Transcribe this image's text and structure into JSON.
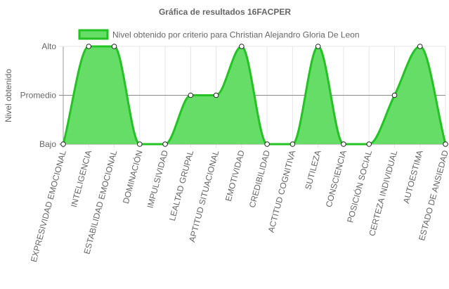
{
  "chart_data": {
    "type": "area",
    "title": "Gráfica de resultados 16FACPER",
    "ylabel": "Nivel obtenido",
    "xlabel": "",
    "y_categories": [
      "Bajo",
      "Promedio",
      "Alto"
    ],
    "ylim": [
      0,
      2
    ],
    "grid": true,
    "legend_position": "top",
    "categories": [
      "EXPRESIVIDAD EMOCIONAL",
      "INTELIGENCIA",
      "ESTABILIDAD EMOCIONAL",
      "DOMINACIÓN",
      "IMPULSIVIDAD",
      "LEALTAD GRUPAL",
      "APTITUD SITUACIONAL",
      "EMOTIVIDAD",
      "CREDIBILIDAD",
      "ACTITUD COGNITIVA",
      "SUTILEZA",
      "CONSCIENCIA",
      "POSICIÓN SOCIAL",
      "CERTEZA INDIVIDUAL",
      "AUTOESTIMA",
      "ESTADO DE ANSIEDAD"
    ],
    "series": [
      {
        "name": "Nivel obtenido por criterio para Christian Alejandro Gloria De Leon",
        "values": [
          0,
          2,
          2,
          0,
          0,
          1,
          1,
          2,
          0,
          0,
          2,
          0,
          0,
          1,
          2,
          0
        ],
        "fill_color": "#66dd66",
        "line_color": "#22c322"
      }
    ]
  }
}
